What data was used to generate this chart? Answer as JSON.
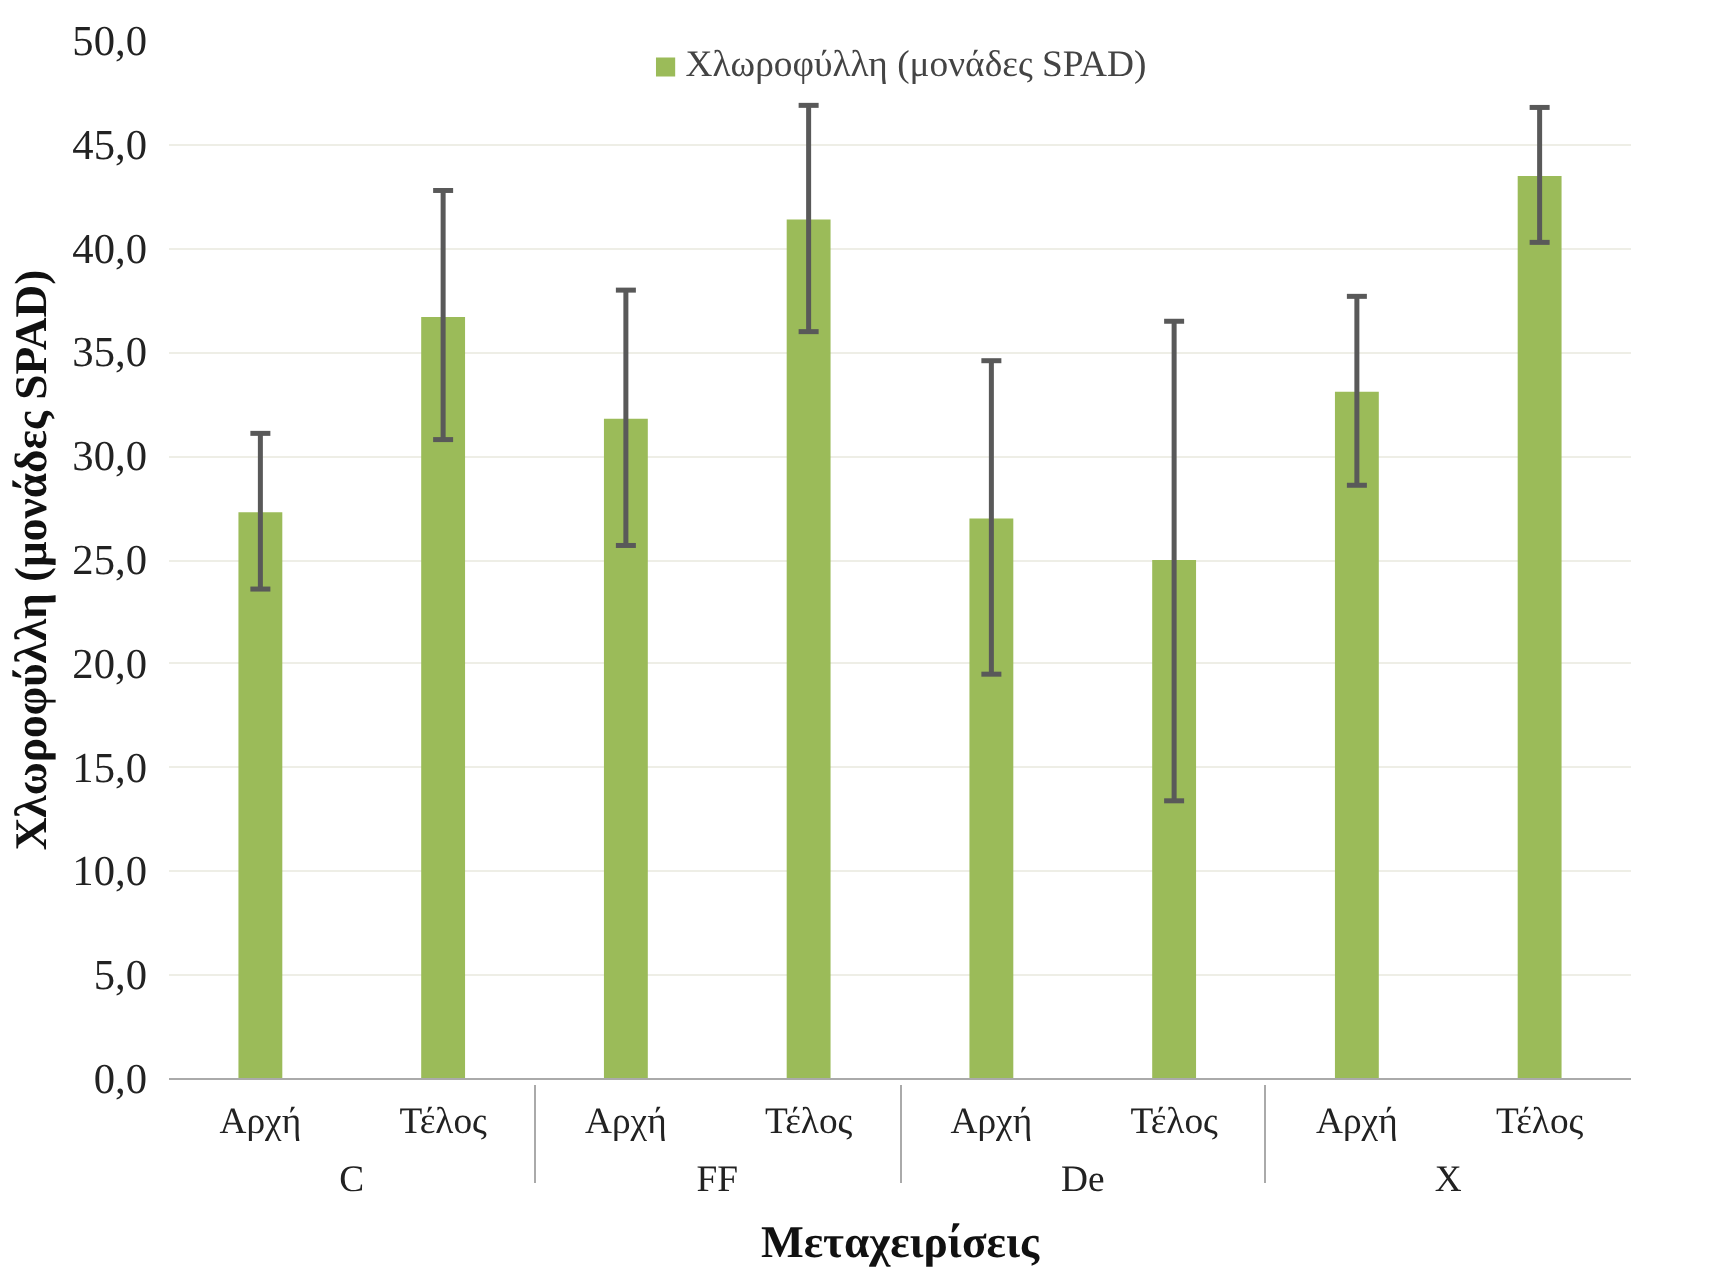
{
  "chart_data": {
    "type": "bar",
    "xlabel": "Μεταχειρίσεις",
    "ylabel": "Χλωροφύλλη (μονάδες SPAD)",
    "categories": [
      "Αρχή",
      "Τέλος",
      "Αρχή",
      "Τέλος",
      "Αρχή",
      "Τέλος",
      "Αρχή",
      "Τέλος"
    ],
    "annotations": [
      "C",
      "FF",
      "De",
      "X"
    ],
    "series": [
      {
        "name": "Χλωροφύλλη (μονάδες SPAD)",
        "color": "#9bbb59",
        "values": [
          27.3,
          36.7,
          31.8,
          41.4,
          27.0,
          25.0,
          33.1,
          43.5
        ],
        "errors": [
          [
            23.6,
            31.1
          ],
          [
            30.8,
            42.8
          ],
          [
            25.7,
            38.0
          ],
          [
            36.0,
            46.9
          ],
          [
            19.5,
            34.6
          ],
          [
            13.4,
            36.5
          ],
          [
            28.6,
            37.7
          ],
          [
            40.3,
            46.8
          ]
        ]
      }
    ],
    "ylim": [
      0,
      50
    ],
    "yticks": [
      {
        "value": 0,
        "label": "0,0"
      },
      {
        "value": 5,
        "label": "5,0"
      },
      {
        "value": 10,
        "label": "10,0"
      },
      {
        "value": 15,
        "label": "15,0"
      },
      {
        "value": 20,
        "label": "20,0"
      },
      {
        "value": 25,
        "label": "25,0"
      },
      {
        "value": 30,
        "label": "30,0"
      },
      {
        "value": 35,
        "label": "35,0"
      },
      {
        "value": 40,
        "label": "40,0"
      },
      {
        "value": 45,
        "label": "45,0"
      },
      {
        "value": 50,
        "label": "50,0"
      }
    ],
    "grid": "y",
    "legend": "top"
  }
}
